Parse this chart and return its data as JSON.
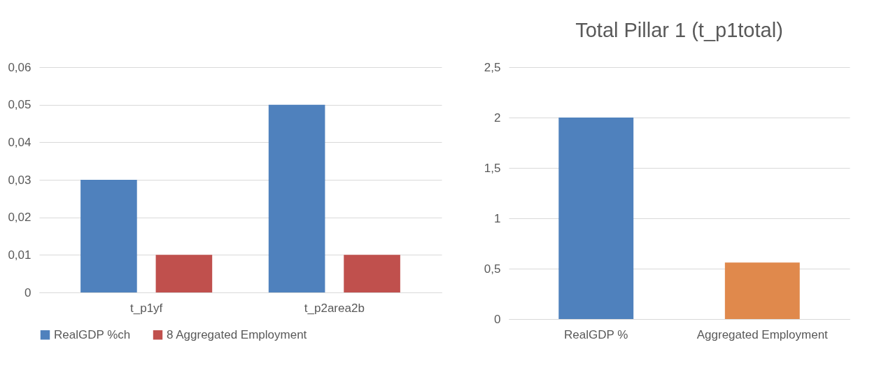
{
  "chart_data": [
    {
      "type": "bar",
      "categories": [
        "t_p1yf",
        "t_p2area2b"
      ],
      "series": [
        {
          "name": "RealGDP %ch",
          "color": "#4f81bd",
          "values": [
            0.03,
            0.05
          ]
        },
        {
          "name": "8 Aggregated Employment",
          "color": "#c0504d",
          "values": [
            0.01,
            0.01
          ]
        }
      ],
      "ylim": [
        0,
        0.06
      ],
      "yticks": [
        {
          "value": 0,
          "label": "0"
        },
        {
          "value": 0.01,
          "label": "0,01"
        },
        {
          "value": 0.02,
          "label": "0,02"
        },
        {
          "value": 0.03,
          "label": "0,03"
        },
        {
          "value": 0.04,
          "label": "0,04"
        },
        {
          "value": 0.05,
          "label": "0,05"
        },
        {
          "value": 0.06,
          "label": "0,06"
        }
      ],
      "grid": "y",
      "legend": "bottom"
    },
    {
      "type": "bar",
      "title": "Total Pillar 1 (t_p1total)",
      "categories": [
        "RealGDP %",
        "Aggregated Employment"
      ],
      "values": [
        2,
        0.56
      ],
      "colors": [
        "#4f81bd",
        "#e0894c"
      ],
      "ylim": [
        0,
        2.5
      ],
      "yticks": [
        {
          "value": 0,
          "label": "0"
        },
        {
          "value": 0.5,
          "label": "0,5"
        },
        {
          "value": 1,
          "label": "1"
        },
        {
          "value": 1.5,
          "label": "1,5"
        },
        {
          "value": 2,
          "label": "2"
        },
        {
          "value": 2.5,
          "label": "2,5"
        }
      ],
      "grid": "y"
    }
  ]
}
